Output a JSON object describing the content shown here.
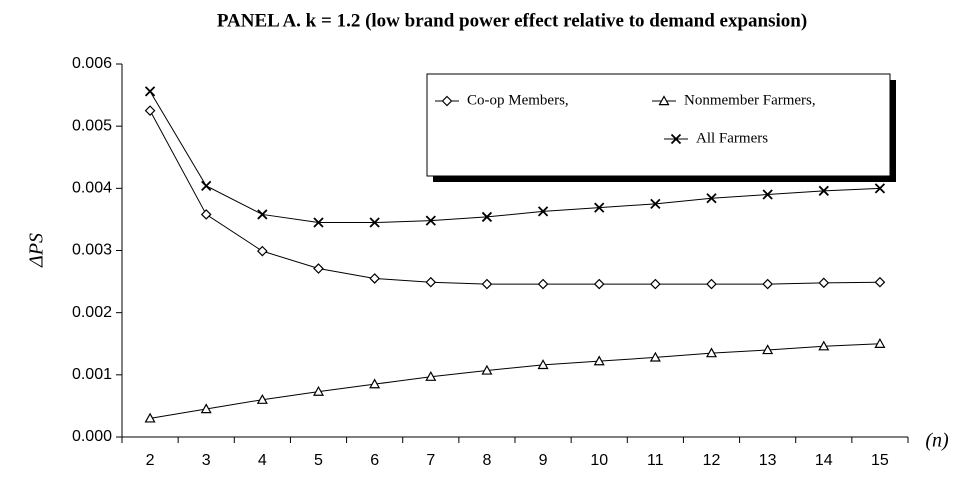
{
  "chart_data": {
    "type": "line",
    "title": "PANEL A.  k = 1.2 (low brand power effect relative to demand expansion)",
    "y_label": "ΔPS",
    "x_label": "(n)",
    "categories": [
      "2",
      "3",
      "4",
      "5",
      "6",
      "7",
      "8",
      "9",
      "10",
      "11",
      "12",
      "13",
      "14",
      "15"
    ],
    "ylim": [
      0,
      0.006
    ],
    "yticks": [
      {
        "value": 0,
        "label": "0.000"
      },
      {
        "value": 0.001,
        "label": "0.001"
      },
      {
        "value": 0.002,
        "label": "0.002"
      },
      {
        "value": 0.003,
        "label": "0.003"
      },
      {
        "value": 0.004,
        "label": "0.004"
      },
      {
        "value": 0.005,
        "label": "0.005"
      },
      {
        "value": 0.006,
        "label": "0.006"
      }
    ],
    "series": [
      {
        "name": "Co-op Members,",
        "color": "#000000",
        "marker": "diamond",
        "values": [
          0.00525,
          0.00358,
          0.00299,
          0.00271,
          0.00255,
          0.00249,
          0.00246,
          0.00246,
          0.00246,
          0.00246,
          0.00246,
          0.00246,
          0.00248,
          0.00249
        ]
      },
      {
        "name": "Nonmember Farmers,",
        "color": "#000000",
        "marker": "triangle",
        "values": [
          0.0003,
          0.00045,
          0.0006,
          0.00073,
          0.00085,
          0.00097,
          0.00107,
          0.00116,
          0.00122,
          0.00128,
          0.00135,
          0.0014,
          0.00146,
          0.0015
        ]
      },
      {
        "name": "All Farmers",
        "color": "#000000",
        "marker": "x",
        "values": [
          0.00556,
          0.00404,
          0.00358,
          0.00345,
          0.00345,
          0.00348,
          0.00354,
          0.00363,
          0.00369,
          0.00375,
          0.00384,
          0.0039,
          0.00396,
          0.004
        ]
      }
    ]
  }
}
